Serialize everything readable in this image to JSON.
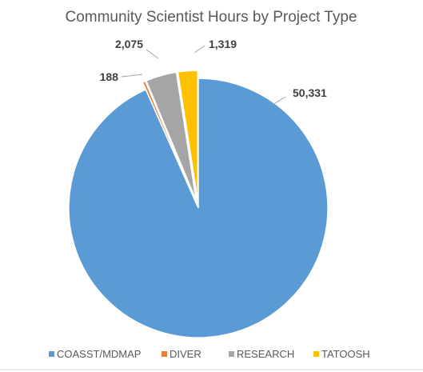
{
  "chart_data": {
    "type": "pie",
    "title": "Community Scientist Hours by Project Type",
    "categories": [
      "COASST/MDMAP",
      "DIVER",
      "RESEARCH",
      "TATOOSH"
    ],
    "values": [
      50331,
      188,
      2075,
      1319
    ],
    "value_labels": [
      "50,331",
      "188",
      "2,075",
      "1,319"
    ],
    "colors": [
      "#5b9bd5",
      "#ed7d31",
      "#a5a5a5",
      "#ffc000"
    ],
    "exploded": true,
    "legend_position": "bottom"
  }
}
